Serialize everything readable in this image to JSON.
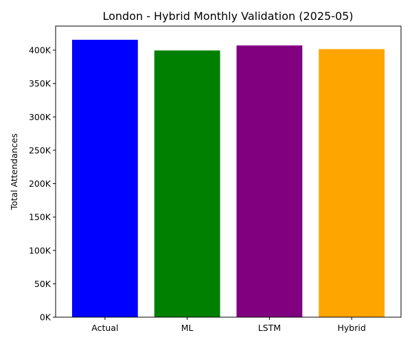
{
  "chart_data": {
    "type": "bar",
    "title": "London - Hybrid Monthly Validation (2025-05)",
    "xlabel": "",
    "ylabel": "Total Attendances",
    "categories": [
      "Actual",
      "ML",
      "LSTM",
      "Hybrid"
    ],
    "values": [
      415500,
      399500,
      407000,
      401500
    ],
    "colors": [
      "#0000ff",
      "#008000",
      "#800080",
      "#ffa500"
    ],
    "ylim": [
      0,
      436000
    ],
    "yticks": [
      0,
      50000,
      100000,
      150000,
      200000,
      250000,
      300000,
      350000,
      400000
    ],
    "ytick_labels": [
      "0K",
      "50K",
      "100K",
      "150K",
      "200K",
      "250K",
      "300K",
      "350K",
      "400K"
    ],
    "grid": false,
    "legend": "none"
  }
}
